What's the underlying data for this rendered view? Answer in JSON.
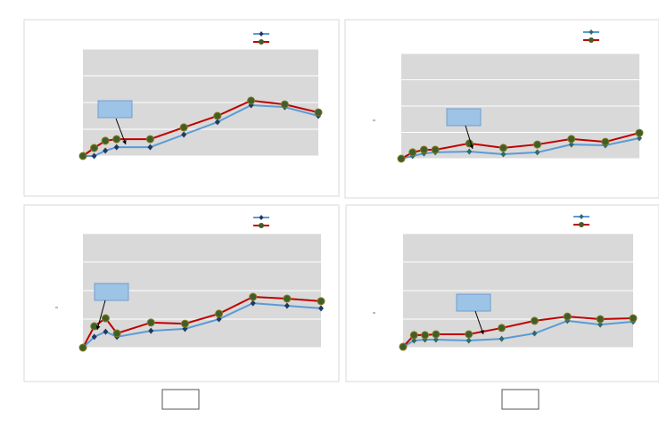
{
  "chart_data": [
    {
      "type": "line",
      "x": [
        0,
        1,
        2,
        3,
        6,
        9,
        12,
        15,
        18,
        21
      ],
      "xlim": [
        0,
        21
      ],
      "ylim": [
        0,
        4
      ],
      "yticks": [
        0,
        1,
        2,
        3,
        4
      ],
      "grid": true,
      "series": [
        {
          "color": "#5b9bd5",
          "marker": "diamond",
          "marker_color": "#1f3864",
          "values": [
            0,
            0,
            0.2,
            0.33,
            0.33,
            0.8,
            1.27,
            1.9,
            1.83,
            1.5
          ]
        },
        {
          "color": "#c00000",
          "marker": "circle",
          "marker_color": "#3f5f2a",
          "values": [
            0,
            0.3,
            0.57,
            0.63,
            0.63,
            1.07,
            1.5,
            2.07,
            1.93,
            1.63
          ]
        }
      ]
    },
    {
      "type": "line",
      "x": [
        0,
        1,
        2,
        3,
        6,
        9,
        12,
        15,
        18,
        21
      ],
      "xlim": [
        0,
        21
      ],
      "ylim": [
        0,
        4
      ],
      "yticks": [
        0,
        1,
        2,
        3,
        4
      ],
      "grid": true,
      "series": [
        {
          "color": "#5b9bd5",
          "marker": "diamond",
          "marker_color": "#2e6b6b",
          "values": [
            0,
            0.1,
            0.2,
            0.24,
            0.27,
            0.17,
            0.24,
            0.54,
            0.51,
            0.78
          ]
        },
        {
          "color": "#c00000",
          "marker": "circle",
          "marker_color": "#3f5f2a",
          "values": [
            0,
            0.24,
            0.34,
            0.34,
            0.58,
            0.41,
            0.54,
            0.75,
            0.64,
            0.98
          ]
        }
      ]
    },
    {
      "type": "line",
      "x": [
        0,
        1,
        2,
        3,
        6,
        9,
        12,
        15,
        18,
        21
      ],
      "xlim": [
        0,
        21
      ],
      "ylim": [
        0,
        4
      ],
      "yticks": [
        0,
        1,
        2,
        3,
        4
      ],
      "grid": true,
      "series": [
        {
          "color": "#5b9bd5",
          "marker": "diamond",
          "marker_color": "#1f3864",
          "values": [
            0,
            0.38,
            0.56,
            0.38,
            0.59,
            0.66,
            1.0,
            1.56,
            1.47,
            1.38
          ]
        },
        {
          "color": "#c00000",
          "marker": "circle",
          "marker_color": "#3f5f2a",
          "values": [
            0,
            0.75,
            1.03,
            0.5,
            0.88,
            0.84,
            1.19,
            1.78,
            1.72,
            1.63
          ]
        }
      ]
    },
    {
      "type": "line",
      "x": [
        0,
        1,
        2,
        3,
        6,
        9,
        12,
        15,
        18,
        21
      ],
      "xlim": [
        0,
        21
      ],
      "ylim": [
        0,
        4
      ],
      "yticks": [
        0,
        1,
        2,
        3,
        4
      ],
      "grid": true,
      "series": [
        {
          "color": "#5b9bd5",
          "marker": "diamond",
          "marker_color": "#2e6b6b",
          "values": [
            0.03,
            0.25,
            0.28,
            0.28,
            0.25,
            0.31,
            0.5,
            0.94,
            0.81,
            0.91
          ]
        },
        {
          "color": "#c00000",
          "marker": "circle",
          "marker_color": "#3f5f2a",
          "values": [
            0.03,
            0.44,
            0.44,
            0.47,
            0.47,
            0.69,
            0.94,
            1.09,
            1.0,
            1.03
          ]
        }
      ]
    }
  ]
}
